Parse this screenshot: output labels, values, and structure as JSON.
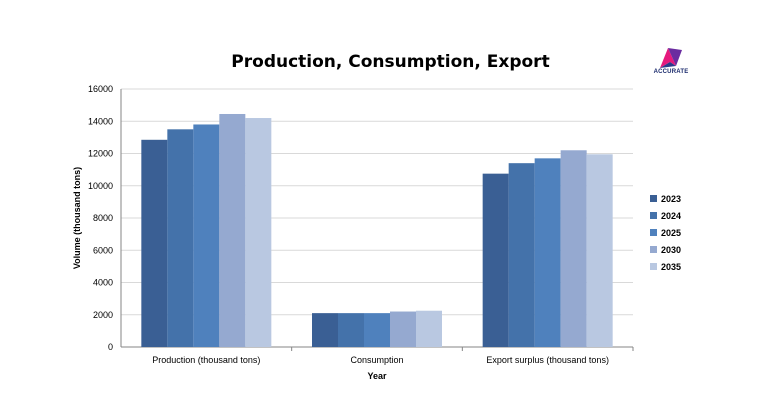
{
  "logo": {
    "text": "ACCURATE"
  },
  "chart_data": {
    "type": "bar",
    "title": "Production, Consumption, Export",
    "xlabel": "Year",
    "ylabel": "Volume (thousand tons)",
    "ylim": [
      0,
      16000
    ],
    "yticks": [
      0,
      2000,
      4000,
      6000,
      8000,
      10000,
      12000,
      14000,
      16000
    ],
    "categories": [
      "Production (thousand tons)",
      "Consumption",
      "Export surplus (thousand tons)"
    ],
    "grid": true,
    "legend_position": "right",
    "series": [
      {
        "name": "2023",
        "color": "#3a5f94",
        "values": [
          12850,
          2100,
          10750
        ]
      },
      {
        "name": "2024",
        "color": "#4472aa",
        "values": [
          13500,
          2100,
          11400
        ]
      },
      {
        "name": "2025",
        "color": "#4f81bd",
        "values": [
          13800,
          2100,
          11700
        ]
      },
      {
        "name": "2030",
        "color": "#95a9d0",
        "values": [
          14450,
          2200,
          12200
        ]
      },
      {
        "name": "2035",
        "color": "#b9c8e1",
        "values": [
          14200,
          2250,
          11950
        ]
      }
    ]
  }
}
